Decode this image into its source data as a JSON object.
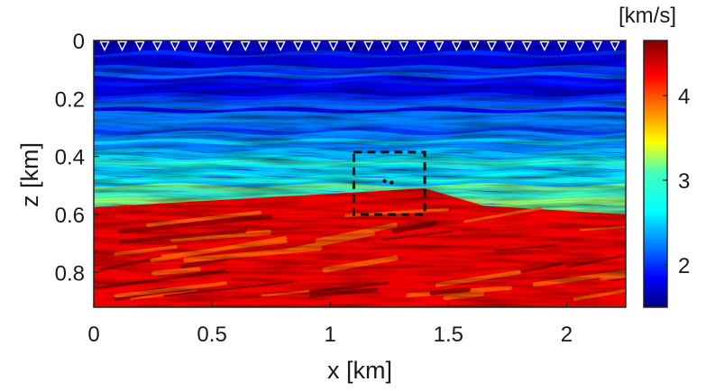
{
  "chart_data": {
    "type": "heatmap",
    "title": "",
    "xlabel": "x [km]",
    "ylabel": "z [km]",
    "xlim": [
      0,
      2.25
    ],
    "ylim": [
      0.92,
      0
    ],
    "x_ticks": [
      "0",
      "0.5",
      "1",
      "1.5",
      "2"
    ],
    "y_ticks": [
      "0",
      "0.2",
      "0.4",
      "0.6",
      "0.8"
    ],
    "colorbar": {
      "unit": "[km/s]",
      "range": [
        1.5,
        4.65
      ],
      "ticks": [
        "2",
        "3",
        "4"
      ],
      "colormap": "jet"
    },
    "annotations": {
      "receivers_marker": "inverted-triangle",
      "receiver_count": 30,
      "receiver_depth_km": 0.02,
      "box_x_km": [
        1.1,
        1.4
      ],
      "box_z_km": [
        0.385,
        0.6
      ],
      "points_km": [
        [
          1.23,
          0.485
        ],
        [
          1.26,
          0.49
        ]
      ]
    },
    "model": {
      "water_velocity": 1.75,
      "sediment_velocity_range": [
        1.9,
        2.9
      ],
      "salt_velocity": 4.3,
      "interface_points_km": [
        [
          0,
          0.575
        ],
        [
          1.4,
          0.51
        ],
        [
          1.65,
          0.57
        ],
        [
          2.25,
          0.6
        ]
      ]
    }
  }
}
